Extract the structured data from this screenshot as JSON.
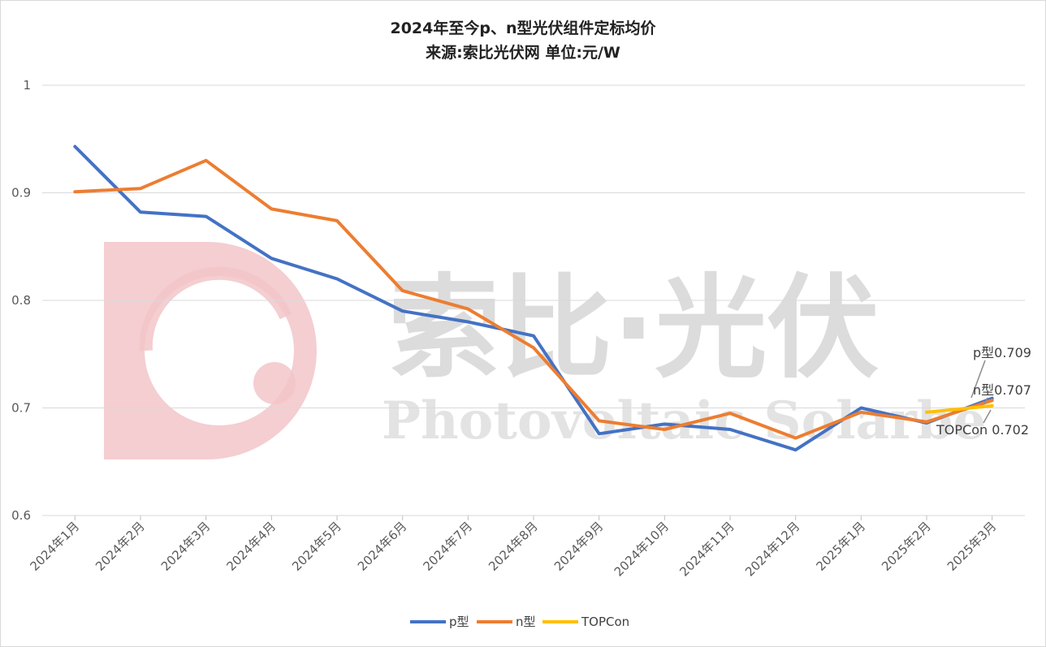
{
  "chart_data": {
    "type": "line",
    "title": "2024年至今p、n型光伏组件定标均价",
    "subtitle": "来源:索比光伏网 单位:元/W",
    "categories": [
      "2024年1月",
      "2024年2月",
      "2024年3月",
      "2024年4月",
      "2024年5月",
      "2024年6月",
      "2024年7月",
      "2024年8月",
      "2024年9月",
      "2024年10月",
      "2024年11月",
      "2024年12月",
      "2025年1月",
      "2025年2月",
      "2025年3月"
    ],
    "ylim": [
      0.6,
      1.0
    ],
    "yticks": [
      0.6,
      0.7,
      0.8,
      0.9,
      1.0
    ],
    "ytick_labels": [
      "0.6",
      "0.7",
      "0.8",
      "0.9",
      "1"
    ],
    "grid": true,
    "legend_position": "bottom",
    "series": [
      {
        "name": "p型",
        "color": "#4472C4",
        "values": [
          0.943,
          0.882,
          0.878,
          0.839,
          0.82,
          0.79,
          0.78,
          0.767,
          0.676,
          0.685,
          0.68,
          0.661,
          0.7,
          0.686,
          0.709
        ]
      },
      {
        "name": "n型",
        "color": "#ED7D31",
        "values": [
          0.901,
          0.904,
          0.93,
          0.885,
          0.874,
          0.809,
          0.792,
          0.756,
          0.688,
          0.68,
          0.695,
          0.672,
          0.696,
          0.687,
          0.707
        ]
      },
      {
        "name": "TOPCon",
        "color": "#FFC000",
        "values": [
          null,
          null,
          null,
          null,
          null,
          null,
          null,
          null,
          null,
          null,
          null,
          null,
          null,
          0.696,
          0.702
        ]
      }
    ],
    "annotations": [
      {
        "text": "p型0.709"
      },
      {
        "text": "n型0.707"
      },
      {
        "text": "TOPCon 0.702"
      }
    ]
  },
  "watermark": {
    "cn_text": "索比·光伏",
    "en_text": "Photovoltaic Solarbe",
    "logo_color": "#f2c6c9"
  }
}
